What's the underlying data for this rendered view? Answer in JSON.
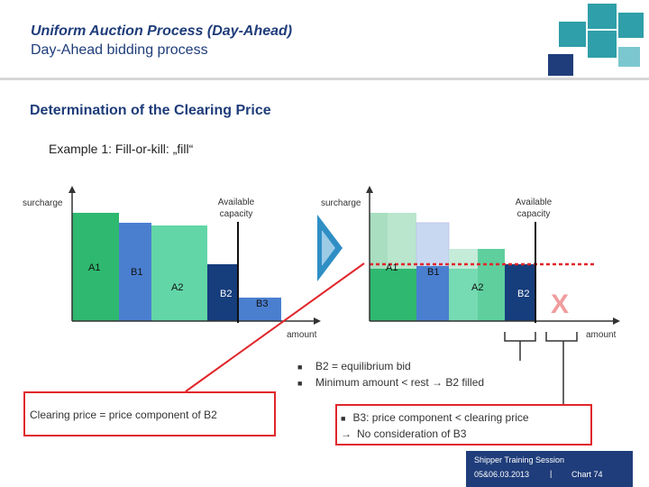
{
  "header": {
    "title": "Uniform Auction Process (Day-Ahead)",
    "subtitle": "Day-Ahead bidding process"
  },
  "section_title": "Determination of the Clearing Price",
  "example_title": "Example 1: Fill-or-kill: „fill“",
  "left_chart": {
    "y_axis_label": "surcharge",
    "x_axis_label": "amount",
    "capacity_label_line1": "Available",
    "capacity_label_line2": "capacity",
    "bars": [
      "A1",
      "B1",
      "A2",
      "B2",
      "B3"
    ]
  },
  "right_chart": {
    "y_axis_label": "surcharge",
    "x_axis_label": "amount",
    "capacity_label_line1": "Available",
    "capacity_label_line2": "capacity",
    "bars": [
      "A1",
      "B1",
      "A2",
      "B2"
    ],
    "cross_mark": "X"
  },
  "bullets": [
    "B2 = equilibrium bid",
    "Minimum amount  < rest → B2 filled"
  ],
  "clearing_note": "Clearing price = price component of B2",
  "b3_note": {
    "line1": "B3: price component < clearing price",
    "line2": "No consideration of B3"
  },
  "footer": {
    "line1": "Shipper Training Session",
    "date": "05&06.03.2013",
    "separator": "|",
    "chart": "Chart 74"
  },
  "colors": {
    "brand_blue": "#1f3d7a",
    "logo_teal": "#2f9fa9",
    "highlight_red": "#e0262b",
    "bar_green": "#2fb86f",
    "bar_blue": "#4a7fd0",
    "bar_mint": "#62d6a7",
    "bar_navy": "#163d7c"
  }
}
